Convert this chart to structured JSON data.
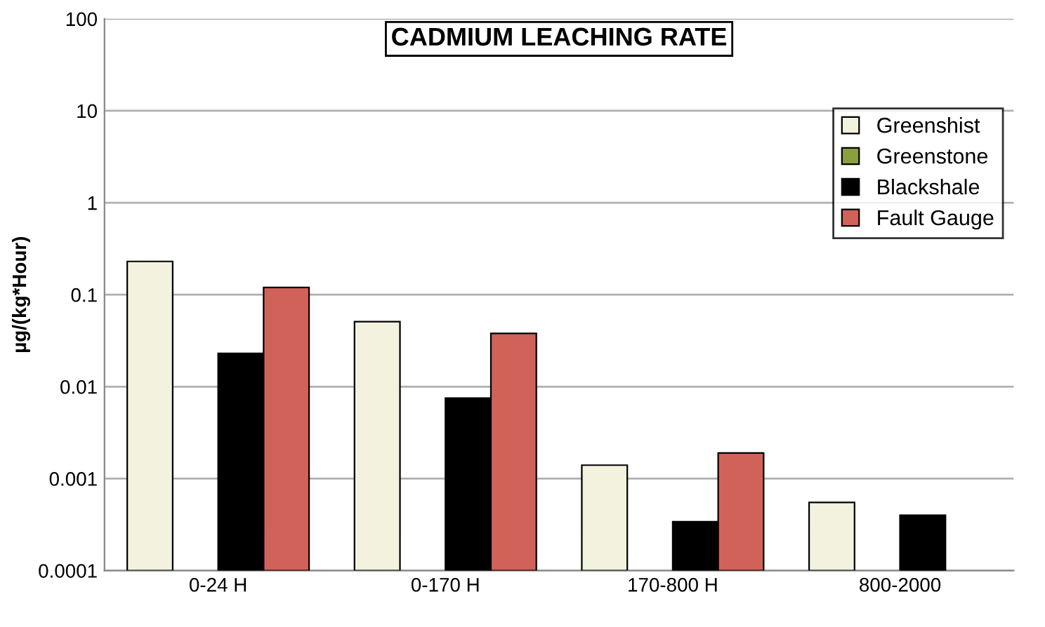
{
  "chart_data": {
    "type": "bar",
    "title": "CADMIUM LEACHING RATE",
    "ylabel": "µg/(kg*Hour)",
    "categories": [
      "0-24 H",
      "0-170 H",
      "170-800 H",
      "800-2000"
    ],
    "series": [
      {
        "name": "Greenshist",
        "color": "#f2f2de",
        "values": [
          0.23,
          0.051,
          0.0014,
          0.00055
        ]
      },
      {
        "name": "Greenstone",
        "color": "#8aa040",
        "values": [
          null,
          null,
          null,
          null
        ]
      },
      {
        "name": "Blackshale",
        "color": "#000000",
        "values": [
          0.023,
          0.0075,
          0.00034,
          0.0004
        ]
      },
      {
        "name": "Fault Gauge",
        "color": "#d0625a",
        "values": [
          0.12,
          0.038,
          0.0019,
          null
        ]
      }
    ],
    "log": "y",
    "ylim": [
      0.0001,
      100
    ],
    "yticks": [
      {
        "value": 0.0001,
        "label": "0.0001"
      },
      {
        "value": 0.001,
        "label": "0.001"
      },
      {
        "value": 0.01,
        "label": "0.01"
      },
      {
        "value": 0.1,
        "label": "0.1"
      },
      {
        "value": 1,
        "label": "1"
      },
      {
        "value": 10,
        "label": "10"
      },
      {
        "value": 100,
        "label": "100"
      }
    ],
    "grid": "y",
    "legend": "right"
  }
}
